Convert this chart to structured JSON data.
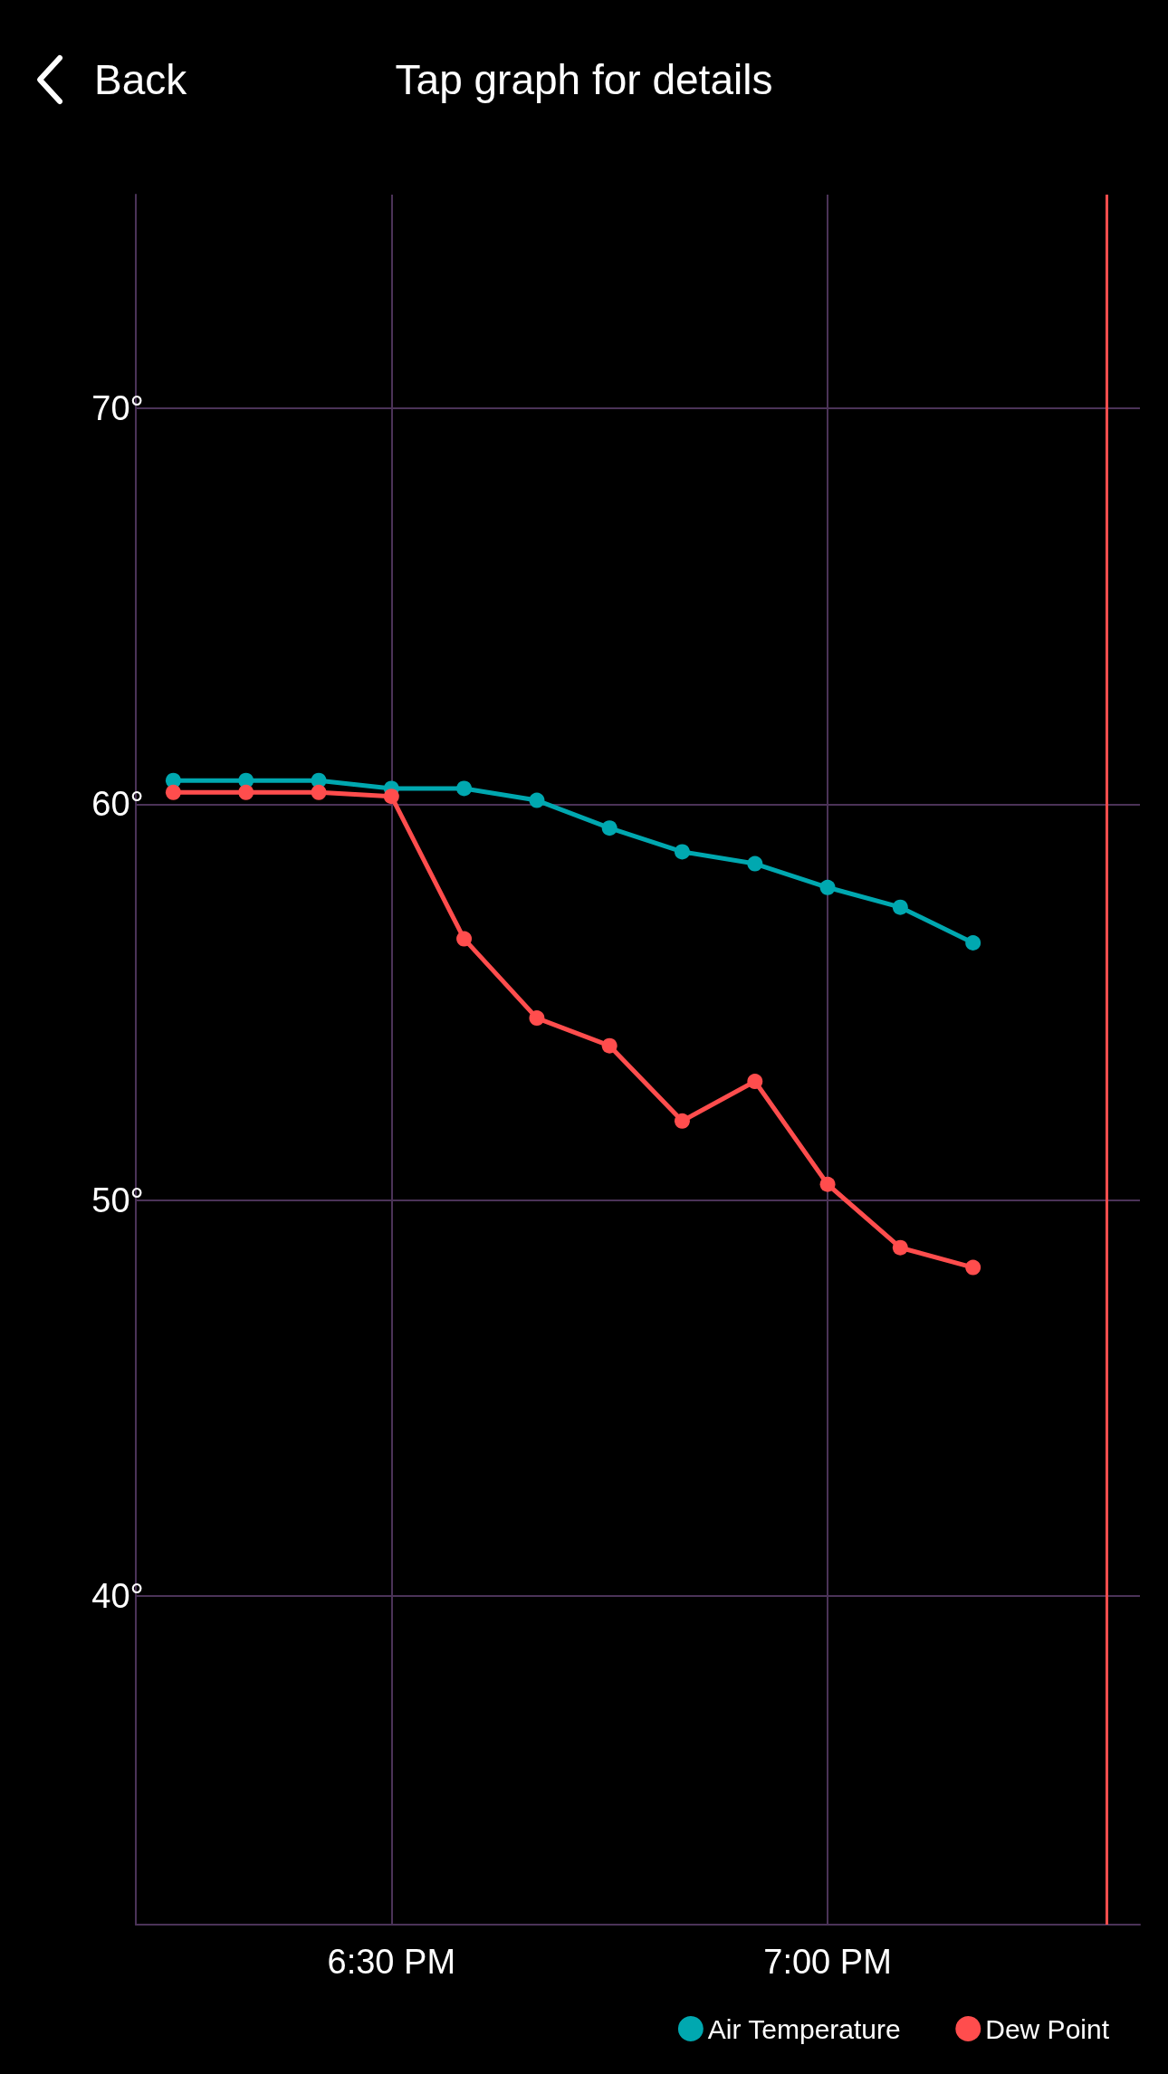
{
  "chart_data": {
    "type": "line",
    "title": "Tap graph for details",
    "annotations": [
      "Back"
    ],
    "x": [
      18.25,
      18.3333,
      18.4167,
      18.5,
      18.5833,
      18.6667,
      18.75,
      18.8333,
      18.9167,
      19,
      19.0833,
      19.1667
    ],
    "series": [
      {
        "name": "Air Temperature",
        "color": "#00a8b0",
        "values": [
          60.6,
          60.6,
          60.6,
          60.4,
          60.4,
          60.1,
          59.4,
          58.8,
          58.5,
          57.9,
          57.4,
          56.5
        ]
      },
      {
        "name": "Dew Point",
        "color": "#ff4d4d",
        "values": [
          60.3,
          60.3,
          60.3,
          60.2,
          56.6,
          54.6,
          53.9,
          52.0,
          53.0,
          50.4,
          48.8,
          48.3
        ]
      }
    ],
    "xlim": [
      18.207,
      19.358
    ],
    "xticks": [
      {
        "value": 18.5,
        "label": "6:30 PM"
      },
      {
        "value": 19,
        "label": "7:00 PM"
      }
    ],
    "ylim": [
      31.7,
      75.4
    ],
    "yticks": [
      {
        "value": 40,
        "label": "40°"
      },
      {
        "value": 50,
        "label": "50°"
      },
      {
        "value": 60,
        "label": "60°"
      },
      {
        "value": 70,
        "label": "70°"
      }
    ],
    "ref_lines": [
      {
        "axis": "x",
        "value": 19.317,
        "color": "#ff4d4d"
      }
    ],
    "grid": true,
    "legend": "bottom right",
    "marker": "circle",
    "line_style": "solid"
  }
}
